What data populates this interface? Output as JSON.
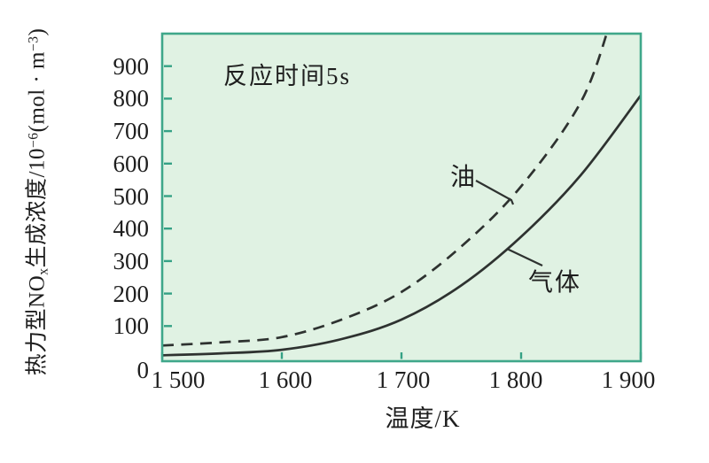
{
  "chart_data": {
    "type": "line",
    "annotation": "反应时间5s",
    "xlabel": "温度/K",
    "ylabel_parts": [
      {
        "t": "热力型NO"
      },
      {
        "t": "x",
        "s": "sub"
      },
      {
        "t": "生成浓度/10"
      },
      {
        "t": "−6",
        "s": "sup"
      },
      {
        "t": "(mol · m"
      },
      {
        "t": "−3",
        "s": "sup"
      },
      {
        "t": ")"
      }
    ],
    "xlim": [
      1500,
      1900
    ],
    "ylim": [
      0,
      1000
    ],
    "x_ticks": [
      {
        "value": 1500,
        "label": "1 500"
      },
      {
        "value": 1600,
        "label": "1 600"
      },
      {
        "value": 1700,
        "label": "1 700"
      },
      {
        "value": 1800,
        "label": "1 800"
      },
      {
        "value": 1900,
        "label": "1 900"
      }
    ],
    "y_ticks": [
      {
        "value": 0,
        "label": "0"
      },
      {
        "value": 100,
        "label": "100"
      },
      {
        "value": 200,
        "label": "200"
      },
      {
        "value": 300,
        "label": "300"
      },
      {
        "value": 400,
        "label": "400"
      },
      {
        "value": 500,
        "label": "500"
      },
      {
        "value": 600,
        "label": "600"
      },
      {
        "value": 700,
        "label": "700"
      },
      {
        "value": 800,
        "label": "800"
      },
      {
        "value": 900,
        "label": "900"
      }
    ],
    "series": [
      {
        "name": "油",
        "line_style": "dashed",
        "points": [
          [
            1500,
            40
          ],
          [
            1550,
            50
          ],
          [
            1600,
            66
          ],
          [
            1650,
            120
          ],
          [
            1700,
            205
          ],
          [
            1750,
            345
          ],
          [
            1800,
            530
          ],
          [
            1850,
            790
          ],
          [
            1875,
            1040
          ]
        ]
      },
      {
        "name": "气体",
        "line_style": "solid",
        "points": [
          [
            1500,
            10
          ],
          [
            1550,
            16
          ],
          [
            1600,
            27
          ],
          [
            1650,
            60
          ],
          [
            1700,
            120
          ],
          [
            1750,
            225
          ],
          [
            1800,
            375
          ],
          [
            1850,
            565
          ],
          [
            1900,
            810
          ]
        ]
      }
    ],
    "legend_position": "inline-labels",
    "grid": false,
    "colors": {
      "plot_bg": "#e0f2e3",
      "frame": "#3fa78a",
      "tick": "#35a185",
      "curve": "#2e3230",
      "text": "#1e1e1e"
    }
  }
}
